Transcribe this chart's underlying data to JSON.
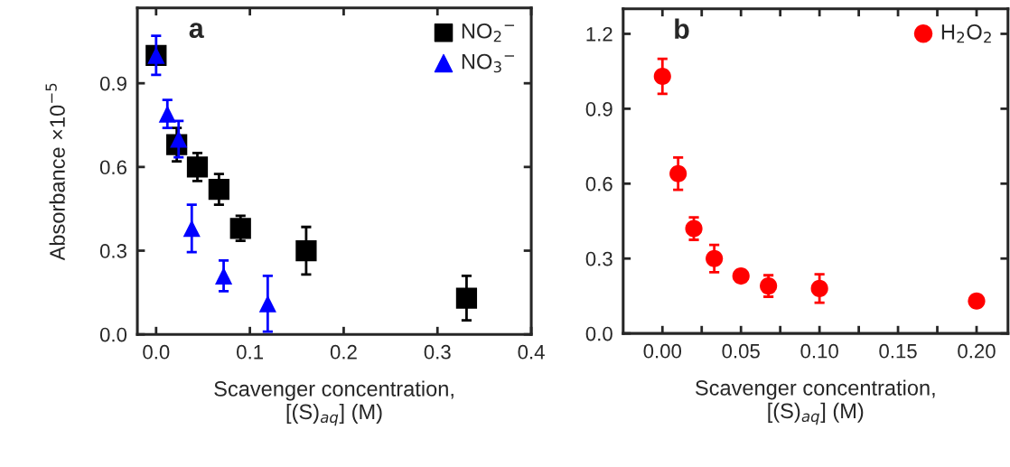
{
  "chart_data": [
    {
      "type": "scatter",
      "title": "a",
      "ylabel": "Absorbance ×10$^{−5}$",
      "xlabel": "Scavenger concentration,\n[(S)$_{aq}$] (M)",
      "xlim": [
        -0.02,
        0.4
      ],
      "xticks": [
        {
          "value": 0,
          "label": "0.0"
        },
        0.1,
        0.2,
        0.3,
        0.4
      ],
      "ylim": [
        0,
        1.17
      ],
      "yticks": [
        {
          "value": 0,
          "label": "0.0"
        },
        0.3,
        0.6,
        0.9
      ],
      "legend": "top right",
      "grid": false,
      "series": [
        {
          "name": "NO$_{2}$$^{−}$",
          "color": "#000000",
          "marker": "square",
          "x": [
            0,
            0.022,
            0.044,
            0.067,
            0.09,
            0.16,
            0.331
          ],
          "values": [
            1.0,
            0.68,
            0.6,
            0.52,
            0.38,
            0.3,
            0.13
          ],
          "errors": [
            null,
            0.06,
            0.05,
            0.055,
            0.045,
            0.085,
            0.08
          ]
        },
        {
          "name": "NO$_{3}$$^{−}$",
          "color": "#0000ff",
          "marker": "triangle",
          "x": [
            0,
            0.012,
            0.024,
            0.038,
            0.072,
            0.119
          ],
          "values": [
            1.0,
            0.79,
            0.7,
            0.38,
            0.21,
            0.11
          ],
          "errors": [
            0.07,
            0.05,
            0.065,
            0.085,
            0.055,
            0.1
          ]
        }
      ]
    },
    {
      "type": "scatter",
      "title": "b",
      "xlabel": "Scavenger concentration,\n[(S)$_{aq}$] (M)",
      "xlim": [
        -0.025,
        0.22
      ],
      "xticks": [
        {
          "value": 0,
          "label": "0.00"
        },
        0.05,
        {
          "value": 0.1,
          "label": "0.10"
        },
        0.15,
        {
          "value": 0.2,
          "label": "0.20"
        },
        {
          "value": 0.025,
          "label": null
        },
        {
          "value": 0.075,
          "label": null
        },
        {
          "value": 0.125,
          "label": null
        },
        {
          "value": 0.175,
          "label": null
        }
      ],
      "ylim": [
        0,
        1.3
      ],
      "yticks": [
        {
          "value": 0,
          "label": "0.0"
        },
        0.3,
        0.6,
        0.9,
        1.2
      ],
      "legend": "top right",
      "grid": false,
      "series": [
        {
          "name": "H$_{2}$O$_{2}$",
          "color": "#ff0000",
          "marker": "circle",
          "x": [
            0,
            0.01,
            0.02,
            0.033,
            0.05,
            0.0675,
            0.1,
            0.2
          ],
          "values": [
            1.03,
            0.64,
            0.42,
            0.3,
            0.23,
            0.19,
            0.18,
            0.13
          ],
          "errors": [
            0.07,
            0.065,
            0.045,
            0.055,
            null,
            0.043,
            0.057,
            null
          ]
        }
      ]
    }
  ]
}
